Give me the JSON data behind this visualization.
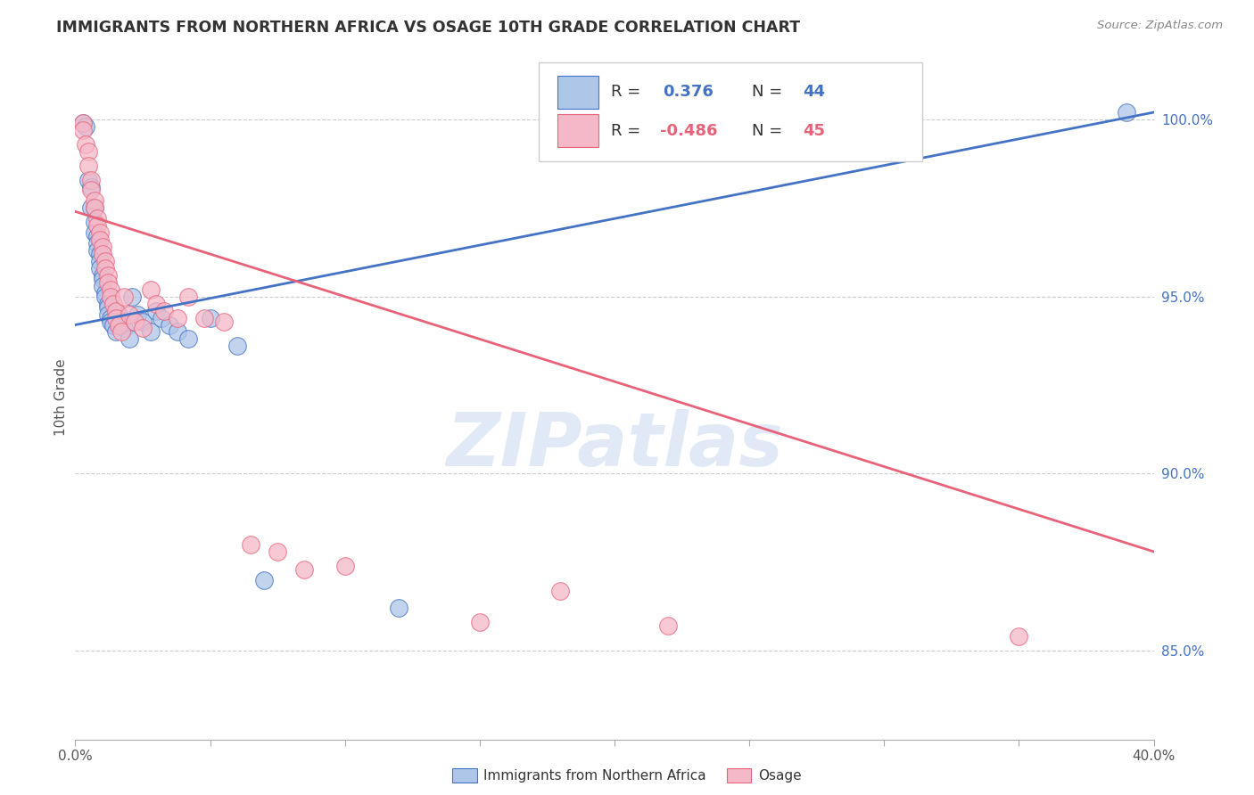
{
  "title": "IMMIGRANTS FROM NORTHERN AFRICA VS OSAGE 10TH GRADE CORRELATION CHART",
  "source": "Source: ZipAtlas.com",
  "ylabel": "10th Grade",
  "ytick_labels": [
    "85.0%",
    "90.0%",
    "95.0%",
    "100.0%"
  ],
  "ytick_values": [
    0.85,
    0.9,
    0.95,
    1.0
  ],
  "xtick_positions": [
    0.0,
    0.05,
    0.1,
    0.15,
    0.2,
    0.25,
    0.3,
    0.35,
    0.4
  ],
  "xtick_labels_show": [
    "0.0%",
    "",
    "",
    "",
    "",
    "",
    "",
    "",
    "40.0%"
  ],
  "xlim": [
    0.0,
    0.4
  ],
  "ylim": [
    0.825,
    1.018
  ],
  "watermark": "ZIPatlas",
  "blue_color": "#aec6e8",
  "pink_color": "#f5b8c8",
  "blue_line_color": "#4472c4",
  "pink_line_color": "#e8637a",
  "legend_blue_r": "0.376",
  "legend_blue_n": "44",
  "legend_pink_r": "-0.486",
  "legend_pink_n": "45",
  "blue_scatter": [
    [
      0.003,
      0.999
    ],
    [
      0.004,
      0.998
    ],
    [
      0.005,
      0.983
    ],
    [
      0.006,
      0.981
    ],
    [
      0.006,
      0.975
    ],
    [
      0.007,
      0.975
    ],
    [
      0.007,
      0.971
    ],
    [
      0.007,
      0.968
    ],
    [
      0.008,
      0.967
    ],
    [
      0.008,
      0.965
    ],
    [
      0.008,
      0.963
    ],
    [
      0.009,
      0.962
    ],
    [
      0.009,
      0.96
    ],
    [
      0.009,
      0.958
    ],
    [
      0.01,
      0.956
    ],
    [
      0.01,
      0.955
    ],
    [
      0.01,
      0.953
    ],
    [
      0.011,
      0.951
    ],
    [
      0.011,
      0.95
    ],
    [
      0.012,
      0.948
    ],
    [
      0.012,
      0.947
    ],
    [
      0.012,
      0.945
    ],
    [
      0.013,
      0.944
    ],
    [
      0.013,
      0.943
    ],
    [
      0.014,
      0.942
    ],
    [
      0.015,
      0.94
    ],
    [
      0.016,
      0.945
    ],
    [
      0.017,
      0.943
    ],
    [
      0.018,
      0.941
    ],
    [
      0.02,
      0.938
    ],
    [
      0.021,
      0.95
    ],
    [
      0.023,
      0.945
    ],
    [
      0.025,
      0.943
    ],
    [
      0.028,
      0.94
    ],
    [
      0.03,
      0.946
    ],
    [
      0.032,
      0.944
    ],
    [
      0.035,
      0.942
    ],
    [
      0.038,
      0.94
    ],
    [
      0.042,
      0.938
    ],
    [
      0.05,
      0.944
    ],
    [
      0.06,
      0.936
    ],
    [
      0.07,
      0.87
    ],
    [
      0.12,
      0.862
    ],
    [
      0.39,
      1.002
    ]
  ],
  "pink_scatter": [
    [
      0.003,
      0.999
    ],
    [
      0.003,
      0.997
    ],
    [
      0.004,
      0.993
    ],
    [
      0.005,
      0.991
    ],
    [
      0.005,
      0.987
    ],
    [
      0.006,
      0.983
    ],
    [
      0.006,
      0.98
    ],
    [
      0.007,
      0.977
    ],
    [
      0.007,
      0.975
    ],
    [
      0.008,
      0.972
    ],
    [
      0.008,
      0.97
    ],
    [
      0.009,
      0.968
    ],
    [
      0.009,
      0.966
    ],
    [
      0.01,
      0.964
    ],
    [
      0.01,
      0.962
    ],
    [
      0.011,
      0.96
    ],
    [
      0.011,
      0.958
    ],
    [
      0.012,
      0.956
    ],
    [
      0.012,
      0.954
    ],
    [
      0.013,
      0.952
    ],
    [
      0.013,
      0.95
    ],
    [
      0.014,
      0.948
    ],
    [
      0.015,
      0.946
    ],
    [
      0.015,
      0.944
    ],
    [
      0.016,
      0.942
    ],
    [
      0.017,
      0.94
    ],
    [
      0.018,
      0.95
    ],
    [
      0.02,
      0.945
    ],
    [
      0.022,
      0.943
    ],
    [
      0.025,
      0.941
    ],
    [
      0.028,
      0.952
    ],
    [
      0.03,
      0.948
    ],
    [
      0.033,
      0.946
    ],
    [
      0.038,
      0.944
    ],
    [
      0.042,
      0.95
    ],
    [
      0.048,
      0.944
    ],
    [
      0.055,
      0.943
    ],
    [
      0.065,
      0.88
    ],
    [
      0.075,
      0.878
    ],
    [
      0.085,
      0.873
    ],
    [
      0.1,
      0.874
    ],
    [
      0.15,
      0.858
    ],
    [
      0.18,
      0.867
    ],
    [
      0.22,
      0.857
    ],
    [
      0.35,
      0.854
    ]
  ],
  "blue_line": [
    [
      0.0,
      0.942
    ],
    [
      0.4,
      1.002
    ]
  ],
  "pink_line": [
    [
      0.0,
      0.974
    ],
    [
      0.4,
      0.878
    ]
  ]
}
